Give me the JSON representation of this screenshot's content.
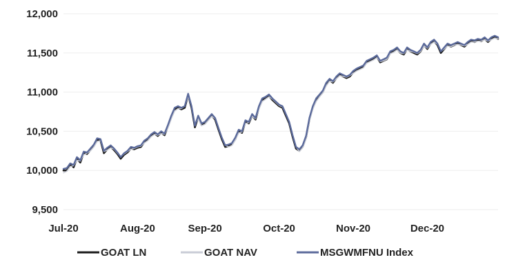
{
  "chart_data": {
    "type": "line",
    "title": "",
    "xlabel": "",
    "ylabel": "",
    "ylim": [
      9500,
      12000
    ],
    "yticks": [
      "12,000",
      "11,500",
      "11,000",
      "10,500",
      "10,000",
      "9,500"
    ],
    "ytick_values": [
      12000,
      11500,
      11000,
      10500,
      10000,
      9500
    ],
    "xticks": [
      "Jul-20",
      "Aug-20",
      "Sep-20",
      "Oct-20",
      "Nov-20",
      "Dec-20"
    ],
    "xtick_positions": [
      0,
      22,
      42,
      64,
      86,
      108
    ],
    "grid": "horizontal",
    "legend_position": "bottom",
    "x_index": [
      0,
      1,
      2,
      3,
      4,
      5,
      6,
      7,
      8,
      9,
      10,
      11,
      12,
      13,
      14,
      15,
      16,
      17,
      18,
      19,
      20,
      21,
      22,
      23,
      24,
      25,
      26,
      27,
      28,
      29,
      30,
      31,
      32,
      33,
      34,
      35,
      36,
      37,
      38,
      39,
      40,
      41,
      42,
      43,
      44,
      45,
      46,
      47,
      48,
      49,
      50,
      51,
      52,
      53,
      54,
      55,
      56,
      57,
      58,
      59,
      60,
      61,
      62,
      63,
      64,
      65,
      66,
      67,
      68,
      69,
      70,
      71,
      72,
      73,
      74,
      75,
      76,
      77,
      78,
      79,
      80,
      81,
      82,
      83,
      84,
      85,
      86,
      87,
      88,
      89,
      90,
      91,
      92,
      93,
      94,
      95,
      96,
      97,
      98,
      99,
      100,
      101,
      102,
      103,
      104,
      105,
      106,
      107,
      108,
      109,
      110,
      111,
      112,
      113,
      114,
      115,
      116,
      117,
      118,
      119,
      120,
      121,
      122,
      123,
      124,
      125,
      126,
      127,
      128,
      129
    ],
    "series": [
      {
        "name": "GOAT LN",
        "color": "#1a1a1a",
        "values": [
          10000,
          10000,
          10080,
          10040,
          10150,
          10100,
          10220,
          10210,
          10260,
          10310,
          10390,
          10380,
          10220,
          10270,
          10300,
          10260,
          10210,
          10150,
          10200,
          10230,
          10280,
          10270,
          10290,
          10300,
          10360,
          10390,
          10440,
          10470,
          10440,
          10480,
          10450,
          10560,
          10680,
          10780,
          10800,
          10780,
          10800,
          10960,
          10800,
          10550,
          10680,
          10580,
          10600,
          10650,
          10700,
          10650,
          10520,
          10400,
          10300,
          10310,
          10330,
          10400,
          10500,
          10480,
          10620,
          10600,
          10700,
          10650,
          10800,
          10900,
          10920,
          10950,
          10900,
          10860,
          10820,
          10800,
          10700,
          10600,
          10430,
          10280,
          10250,
          10300,
          10420,
          10650,
          10800,
          10900,
          10950,
          11000,
          11100,
          11150,
          11120,
          11180,
          11220,
          11200,
          11180,
          11200,
          11250,
          11280,
          11300,
          11320,
          11380,
          11400,
          11420,
          11450,
          11380,
          11400,
          11420,
          11500,
          11520,
          11550,
          11500,
          11480,
          11550,
          11520,
          11500,
          11480,
          11520,
          11600,
          11550,
          11620,
          11650,
          11600,
          11500,
          11550,
          11600,
          11580,
          11600,
          11620,
          11600,
          11580,
          11620,
          11650,
          11640,
          11660,
          11650,
          11680,
          11640,
          11680,
          11700,
          11680
        ]
      },
      {
        "name": "GOAT NAV",
        "color": "#c9ccd6",
        "values": [
          9970,
          9990,
          10050,
          10060,
          10130,
          10120,
          10200,
          10220,
          10250,
          10300,
          10370,
          10380,
          10240,
          10260,
          10290,
          10270,
          10220,
          10170,
          10210,
          10240,
          10270,
          10280,
          10300,
          10310,
          10350,
          10380,
          10430,
          10460,
          10450,
          10470,
          10460,
          10540,
          10660,
          10760,
          10790,
          10790,
          10820,
          10940,
          10820,
          10580,
          10660,
          10570,
          10590,
          10640,
          10690,
          10660,
          10540,
          10420,
          10320,
          10300,
          10320,
          10390,
          10480,
          10490,
          10600,
          10610,
          10690,
          10660,
          10780,
          10880,
          10910,
          10940,
          10910,
          10870,
          10830,
          10810,
          10720,
          10620,
          10450,
          10300,
          10240,
          10290,
          10400,
          10630,
          10780,
          10880,
          10940,
          10990,
          11080,
          11140,
          11130,
          11170,
          11210,
          11200,
          11190,
          11210,
          11240,
          11270,
          11290,
          11310,
          11370,
          11390,
          11410,
          11440,
          11390,
          11400,
          11420,
          11490,
          11510,
          11540,
          11500,
          11490,
          11540,
          11520,
          11510,
          11490,
          11520,
          11590,
          11560,
          11610,
          11640,
          11610,
          11520,
          11550,
          11590,
          11580,
          11600,
          11610,
          11600,
          11590,
          11610,
          11640,
          11640,
          11650,
          11650,
          11670,
          11650,
          11670,
          11690,
          11680
        ]
      },
      {
        "name": "MSGWMFNU Index",
        "color": "#5b6a9b",
        "values": [
          10020,
          10030,
          10090,
          10070,
          10170,
          10130,
          10240,
          10230,
          10280,
          10330,
          10410,
          10400,
          10250,
          10290,
          10320,
          10280,
          10230,
          10170,
          10220,
          10250,
          10300,
          10290,
          10310,
          10320,
          10380,
          10410,
          10460,
          10490,
          10460,
          10500,
          10470,
          10580,
          10700,
          10800,
          10820,
          10800,
          10820,
          10980,
          10820,
          10570,
          10700,
          10600,
          10620,
          10670,
          10720,
          10670,
          10540,
          10420,
          10320,
          10330,
          10350,
          10420,
          10520,
          10500,
          10640,
          10620,
          10720,
          10670,
          10820,
          10920,
          10940,
          10970,
          10920,
          10880,
          10840,
          10820,
          10720,
          10620,
          10450,
          10300,
          10270,
          10320,
          10440,
          10670,
          10820,
          10920,
          10970,
          11020,
          11120,
          11170,
          11140,
          11200,
          11240,
          11220,
          11200,
          11220,
          11270,
          11300,
          11320,
          11340,
          11400,
          11420,
          11440,
          11470,
          11400,
          11420,
          11440,
          11520,
          11540,
          11570,
          11520,
          11500,
          11570,
          11540,
          11520,
          11500,
          11540,
          11620,
          11570,
          11640,
          11670,
          11620,
          11520,
          11570,
          11620,
          11600,
          11620,
          11640,
          11620,
          11600,
          11640,
          11670,
          11660,
          11680,
          11670,
          11700,
          11660,
          11700,
          11720,
          11700
        ]
      }
    ]
  }
}
